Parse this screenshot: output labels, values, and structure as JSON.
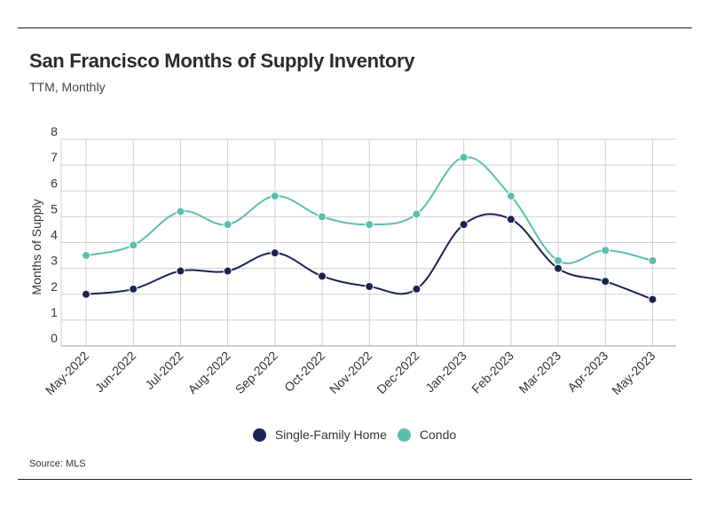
{
  "header": {
    "title": "San Francisco Months of Supply Inventory",
    "subtitle": "TTM, Monthly"
  },
  "footer": {
    "source": "Source:  MLS"
  },
  "colors": {
    "single_family": "#1b2450",
    "condo": "#5bbfae",
    "grid": "#cfcfcf",
    "axis": "#999999"
  },
  "chart_data": {
    "type": "line",
    "title": "San Francisco Months of Supply Inventory",
    "subtitle": "TTM, Monthly",
    "xlabel": "",
    "ylabel": "Months of Supply",
    "ylim": [
      0,
      8
    ],
    "yticks": [
      0,
      1,
      2,
      3,
      4,
      5,
      6,
      7,
      8
    ],
    "grid": true,
    "legend_position": "bottom-center",
    "categories": [
      "May-2022",
      "Jun-2022",
      "Jul-2022",
      "Aug-2022",
      "Sep-2022",
      "Oct-2022",
      "Nov-2022",
      "Dec-2022",
      "Jan-2023",
      "Feb-2023",
      "Mar-2023",
      "Apr-2023",
      "May-2023"
    ],
    "series": [
      {
        "name": "Single-Family Home",
        "color": "#1b2450",
        "values": [
          2.0,
          2.2,
          2.9,
          2.9,
          3.6,
          2.7,
          2.3,
          2.2,
          4.7,
          4.9,
          3.0,
          2.5,
          1.8
        ]
      },
      {
        "name": "Condo",
        "color": "#5bbfae",
        "values": [
          3.5,
          3.9,
          5.2,
          4.7,
          5.8,
          5.0,
          4.7,
          5.1,
          7.3,
          5.8,
          3.3,
          3.7,
          3.3
        ]
      }
    ]
  }
}
